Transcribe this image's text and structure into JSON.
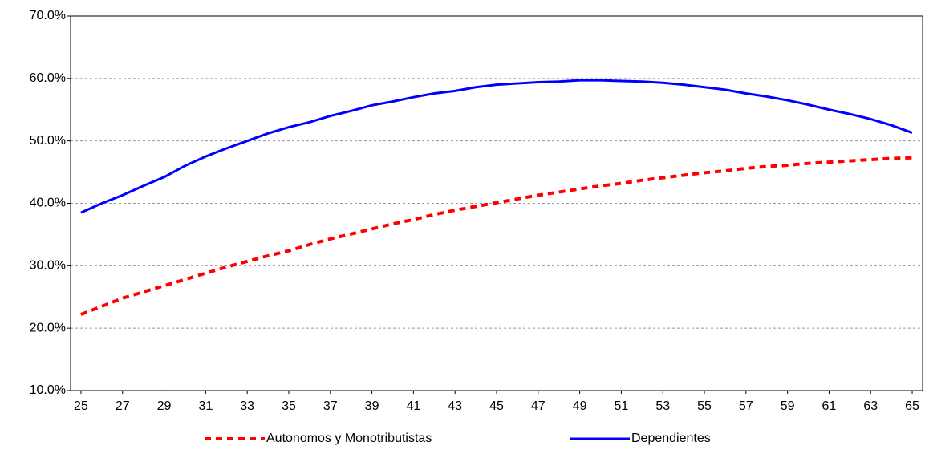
{
  "chart_data": {
    "type": "line",
    "x": [
      25,
      26,
      27,
      28,
      29,
      30,
      31,
      32,
      33,
      34,
      35,
      36,
      37,
      38,
      39,
      40,
      41,
      42,
      43,
      44,
      45,
      46,
      47,
      48,
      49,
      50,
      51,
      52,
      53,
      54,
      55,
      56,
      57,
      58,
      59,
      60,
      61,
      62,
      63,
      64,
      65
    ],
    "xlim": [
      24.5,
      65.5
    ],
    "xticks": [
      25,
      27,
      29,
      31,
      33,
      35,
      37,
      39,
      41,
      43,
      45,
      47,
      49,
      51,
      53,
      55,
      57,
      59,
      61,
      63,
      65
    ],
    "ylim": [
      10,
      70
    ],
    "yticks": [
      {
        "value": 10,
        "label": "10.0%"
      },
      {
        "value": 20,
        "label": "20.0%"
      },
      {
        "value": 30,
        "label": "30.0%"
      },
      {
        "value": 40,
        "label": "40.0%"
      },
      {
        "value": 50,
        "label": "50.0%"
      },
      {
        "value": 60,
        "label": "60.0%"
      },
      {
        "value": 70,
        "label": "70.0%"
      }
    ],
    "grid": true,
    "legend": "bottom",
    "series": [
      {
        "name": "Autonomos y Monotributistas",
        "color": "#ff0000",
        "dashed": true,
        "values": [
          22.2,
          23.5,
          24.8,
          25.8,
          26.8,
          27.8,
          28.8,
          29.8,
          30.7,
          31.6,
          32.4,
          33.4,
          34.3,
          35.1,
          35.9,
          36.7,
          37.4,
          38.2,
          38.9,
          39.5,
          40.1,
          40.7,
          41.3,
          41.8,
          42.3,
          42.8,
          43.2,
          43.7,
          44.1,
          44.5,
          44.9,
          45.2,
          45.6,
          45.9,
          46.1,
          46.4,
          46.6,
          46.8,
          47.0,
          47.2,
          47.3
        ]
      },
      {
        "name": "Dependientes",
        "color": "#0000ff",
        "dashed": false,
        "values": [
          38.5,
          40.0,
          41.3,
          42.8,
          44.2,
          46.0,
          47.5,
          48.8,
          50.0,
          51.2,
          52.2,
          53.0,
          54.0,
          54.8,
          55.7,
          56.3,
          57.0,
          57.6,
          58.0,
          58.6,
          59.0,
          59.2,
          59.4,
          59.5,
          59.7,
          59.7,
          59.6,
          59.5,
          59.3,
          59.0,
          58.6,
          58.2,
          57.6,
          57.1,
          56.5,
          55.8,
          55.0,
          54.3,
          53.5,
          52.5,
          51.3
        ]
      }
    ]
  }
}
